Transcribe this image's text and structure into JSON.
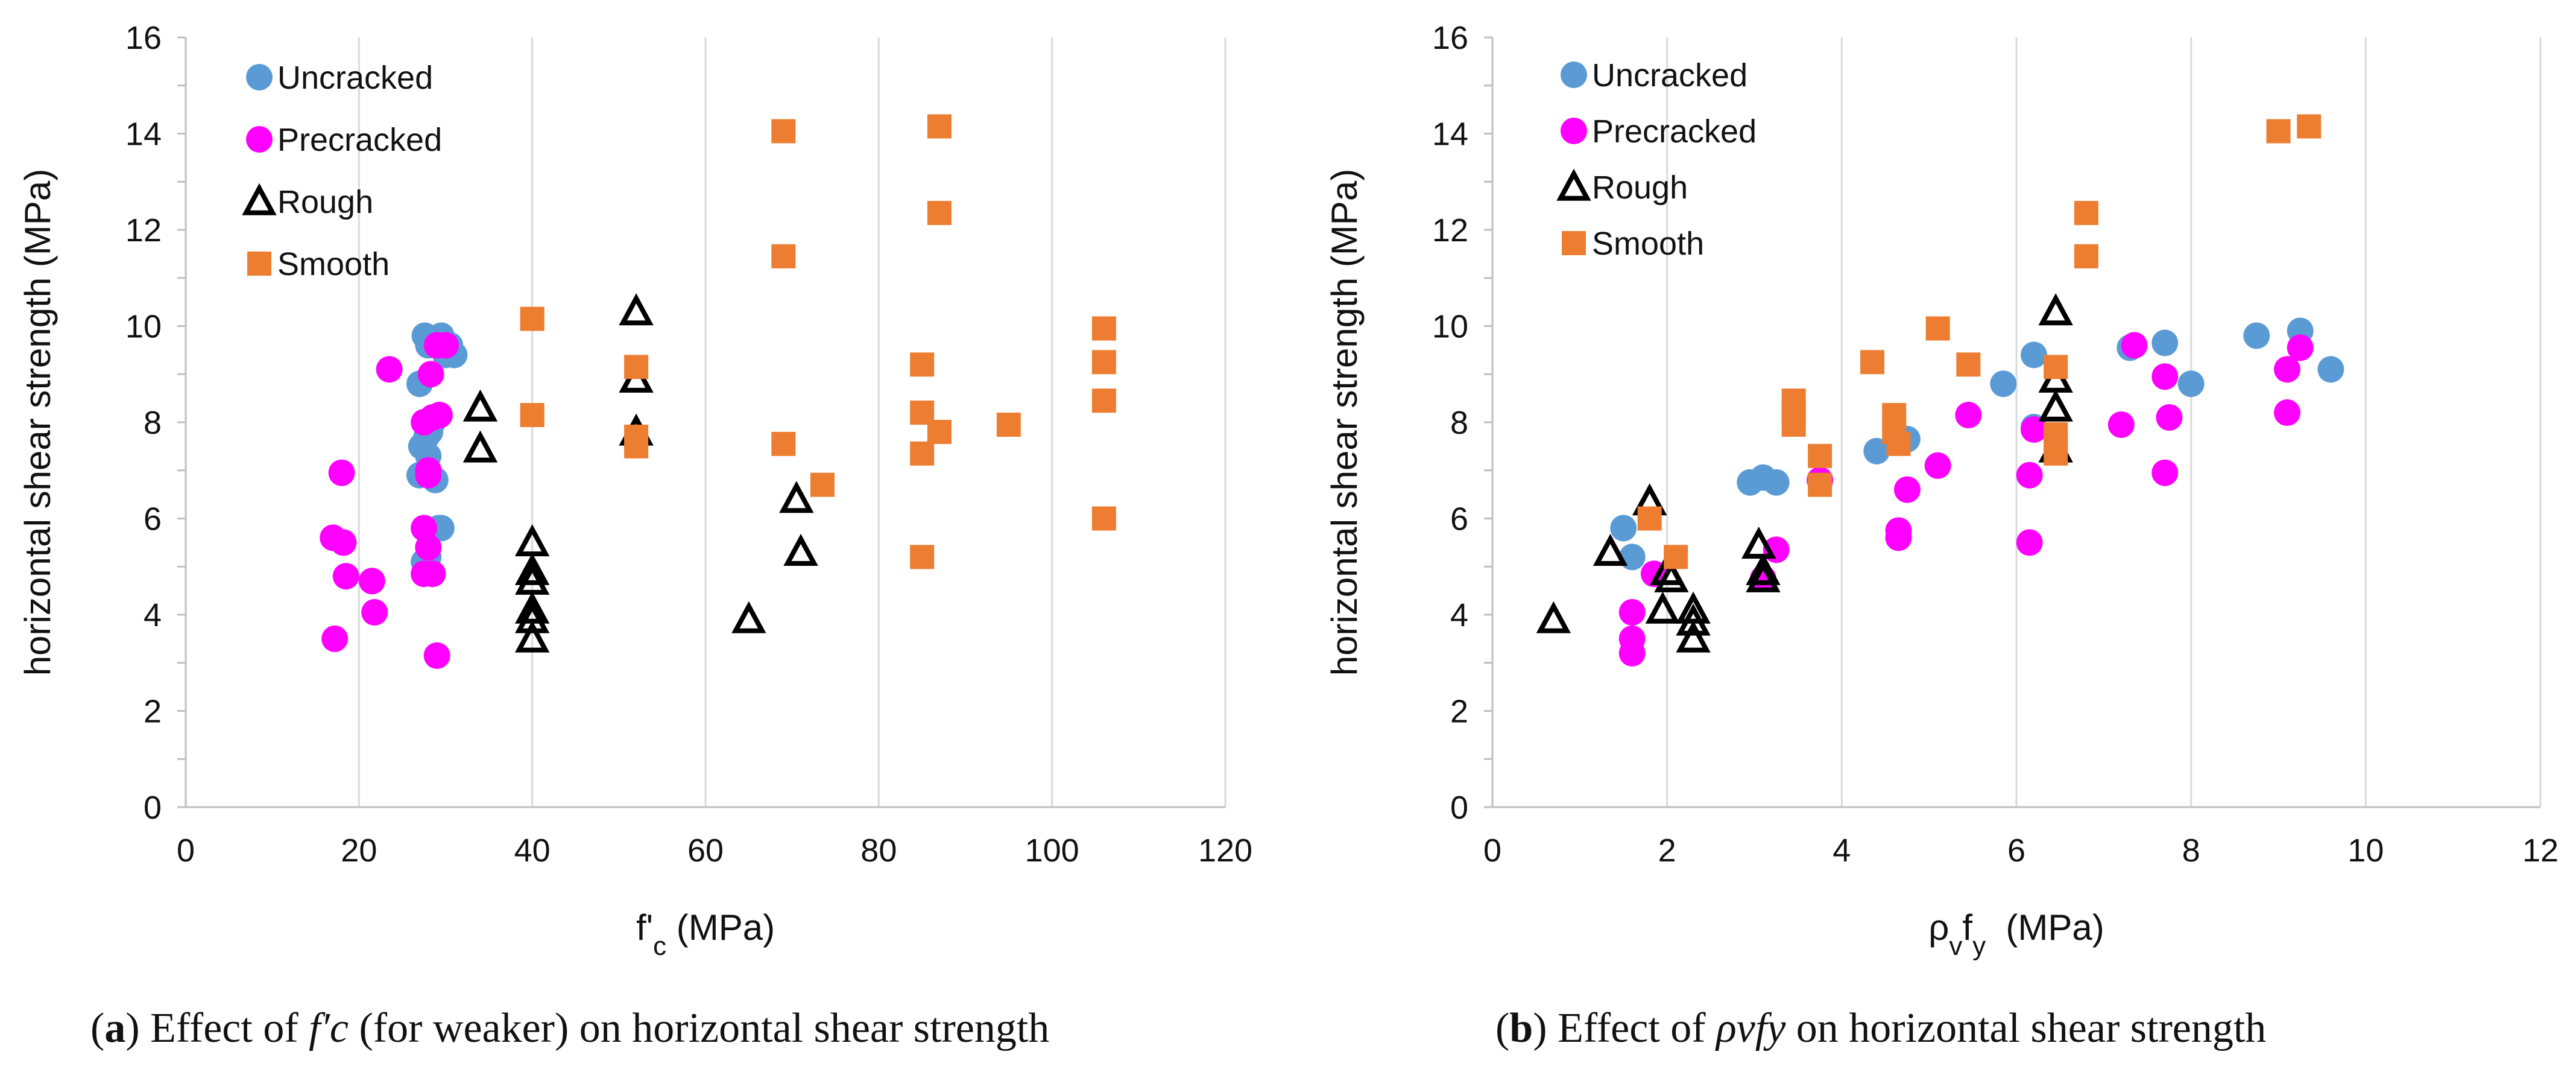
{
  "colors": {
    "uncracked": "#5b9bd5",
    "precracked": "#ff00ff",
    "rough": "#000000",
    "smooth": "#ed7d31",
    "grid": "#d9d9d9",
    "axis": "#bfbfbf"
  },
  "chart_data": [
    {
      "id": "a",
      "type": "scatter",
      "xlabel": "f'c (MPa)",
      "ylabel": "horizontal shear strength (MPa)",
      "xlim": [
        0,
        120
      ],
      "ylim": [
        0,
        16
      ],
      "xticks": [
        0,
        20,
        40,
        60,
        80,
        100,
        120
      ],
      "yticks": [
        0,
        2,
        4,
        6,
        8,
        10,
        12,
        14,
        16
      ],
      "grid": "vertical",
      "legend_position": "top-left",
      "caption": {
        "label": "a",
        "pre": " Effect of ",
        "math": "f′c",
        "post": " (for weaker) on horizontal shear strength"
      },
      "series": [
        {
          "name": "Uncracked",
          "marker": "circle",
          "x": [
            27.6,
            28.0,
            29.5,
            30.0,
            31.0,
            30.5,
            27.0,
            28.5,
            28.2,
            27.8,
            27.2,
            28.0,
            27.0,
            28.8,
            29.2,
            28.0,
            27.5,
            29.5
          ],
          "y": [
            9.8,
            9.6,
            9.8,
            9.4,
            9.4,
            9.6,
            8.8,
            8.0,
            7.8,
            7.7,
            7.5,
            7.3,
            6.9,
            6.8,
            5.8,
            5.2,
            5.1,
            5.8
          ]
        },
        {
          "name": "Precracked",
          "marker": "circle",
          "x": [
            17.0,
            17.2,
            18.2,
            18.5,
            18.0,
            21.5,
            21.8,
            23.5,
            27.5,
            28.0,
            28.5,
            29.0,
            28.3,
            29.3,
            30.0,
            28.0,
            27.5,
            28.0,
            27.5,
            28.5,
            29.0
          ],
          "y": [
            5.6,
            3.5,
            5.5,
            4.8,
            6.95,
            4.7,
            4.05,
            9.1,
            8.0,
            7.0,
            8.1,
            9.6,
            9.0,
            8.15,
            9.6,
            6.9,
            5.8,
            5.4,
            4.85,
            4.85,
            3.15
          ]
        },
        {
          "name": "Rough",
          "marker": "triangle",
          "x": [
            34.0,
            34.0,
            40.0,
            40.0,
            40.0,
            40.0,
            40.0,
            40.0,
            52.0,
            52.0,
            52.0,
            65.0,
            70.5,
            71.0
          ],
          "y": [
            8.3,
            7.45,
            5.5,
            4.9,
            4.7,
            4.1,
            3.9,
            3.5,
            10.3,
            8.9,
            7.8,
            3.9,
            6.4,
            5.3
          ]
        },
        {
          "name": "Smooth",
          "marker": "square",
          "x": [
            40.0,
            40.0,
            52.0,
            52.0,
            52.0,
            69.0,
            69.0,
            69.0,
            73.5,
            85.0,
            85.0,
            85.0,
            85.0,
            87.0,
            87.0,
            87.0,
            95.0,
            106.0,
            106.0,
            106.0,
            106.0
          ],
          "y": [
            10.15,
            8.15,
            9.15,
            7.7,
            7.5,
            14.05,
            11.45,
            7.55,
            6.7,
            9.2,
            8.2,
            7.35,
            5.2,
            14.15,
            12.35,
            7.8,
            7.95,
            9.95,
            9.25,
            8.45,
            6.0
          ]
        }
      ]
    },
    {
      "id": "b",
      "type": "scatter",
      "xlabel": "ρvfy  (MPa)",
      "ylabel": "horizontal shear strength (MPa)",
      "xlim": [
        0,
        12
      ],
      "ylim": [
        0,
        16
      ],
      "xticks": [
        0,
        2,
        4,
        6,
        8,
        10,
        12
      ],
      "yticks": [
        0,
        2,
        4,
        6,
        8,
        10,
        12,
        14,
        16
      ],
      "grid": "vertical",
      "legend_position": "top-left",
      "caption": {
        "label": "b",
        "pre": " Effect of ",
        "math": "ρvfy",
        "post": " on horizontal shear strength"
      },
      "series": [
        {
          "name": "Uncracked",
          "marker": "circle",
          "x": [
            1.5,
            1.6,
            2.95,
            3.1,
            3.25,
            4.4,
            4.75,
            5.85,
            6.2,
            6.2,
            7.3,
            7.7,
            8.0,
            8.75,
            9.25,
            9.6
          ],
          "y": [
            5.8,
            5.2,
            6.75,
            6.85,
            6.75,
            7.4,
            7.65,
            8.8,
            9.4,
            7.9,
            9.55,
            9.65,
            8.8,
            9.8,
            9.9,
            9.1
          ]
        },
        {
          "name": "Precracked",
          "marker": "circle",
          "x": [
            1.6,
            1.6,
            1.6,
            1.85,
            3.1,
            3.25,
            3.75,
            4.65,
            4.65,
            4.75,
            5.1,
            5.45,
            6.15,
            6.15,
            6.2,
            7.2,
            7.35,
            7.7,
            7.7,
            7.75,
            9.1,
            9.1,
            9.25
          ],
          "y": [
            4.05,
            3.5,
            3.2,
            4.85,
            4.75,
            5.35,
            6.8,
            5.75,
            5.6,
            6.6,
            7.1,
            8.15,
            6.9,
            5.5,
            7.85,
            7.95,
            9.6,
            8.95,
            6.95,
            8.1,
            9.1,
            8.2,
            9.55
          ]
        },
        {
          "name": "Rough",
          "marker": "triangle",
          "x": [
            0.7,
            1.35,
            1.8,
            1.95,
            2.0,
            2.05,
            2.3,
            2.3,
            2.3,
            3.05,
            3.1,
            3.1,
            6.45,
            6.45,
            6.45,
            6.45
          ],
          "y": [
            3.9,
            5.3,
            6.35,
            4.1,
            4.9,
            4.75,
            4.1,
            3.85,
            3.5,
            5.45,
            4.9,
            4.75,
            10.3,
            8.9,
            8.3,
            7.45
          ]
        },
        {
          "name": "Smooth",
          "marker": "square",
          "x": [
            1.8,
            2.1,
            3.45,
            3.45,
            3.45,
            3.75,
            3.75,
            4.35,
            4.6,
            4.6,
            4.65,
            5.1,
            5.45,
            6.45,
            6.45,
            6.45,
            6.45,
            6.8,
            6.8,
            9.0,
            9.35
          ],
          "y": [
            6.0,
            5.2,
            8.45,
            8.2,
            7.95,
            7.3,
            6.7,
            9.25,
            8.15,
            7.8,
            7.55,
            9.95,
            9.2,
            9.15,
            7.75,
            7.55,
            7.35,
            12.35,
            11.45,
            14.05,
            14.15
          ]
        }
      ]
    }
  ]
}
